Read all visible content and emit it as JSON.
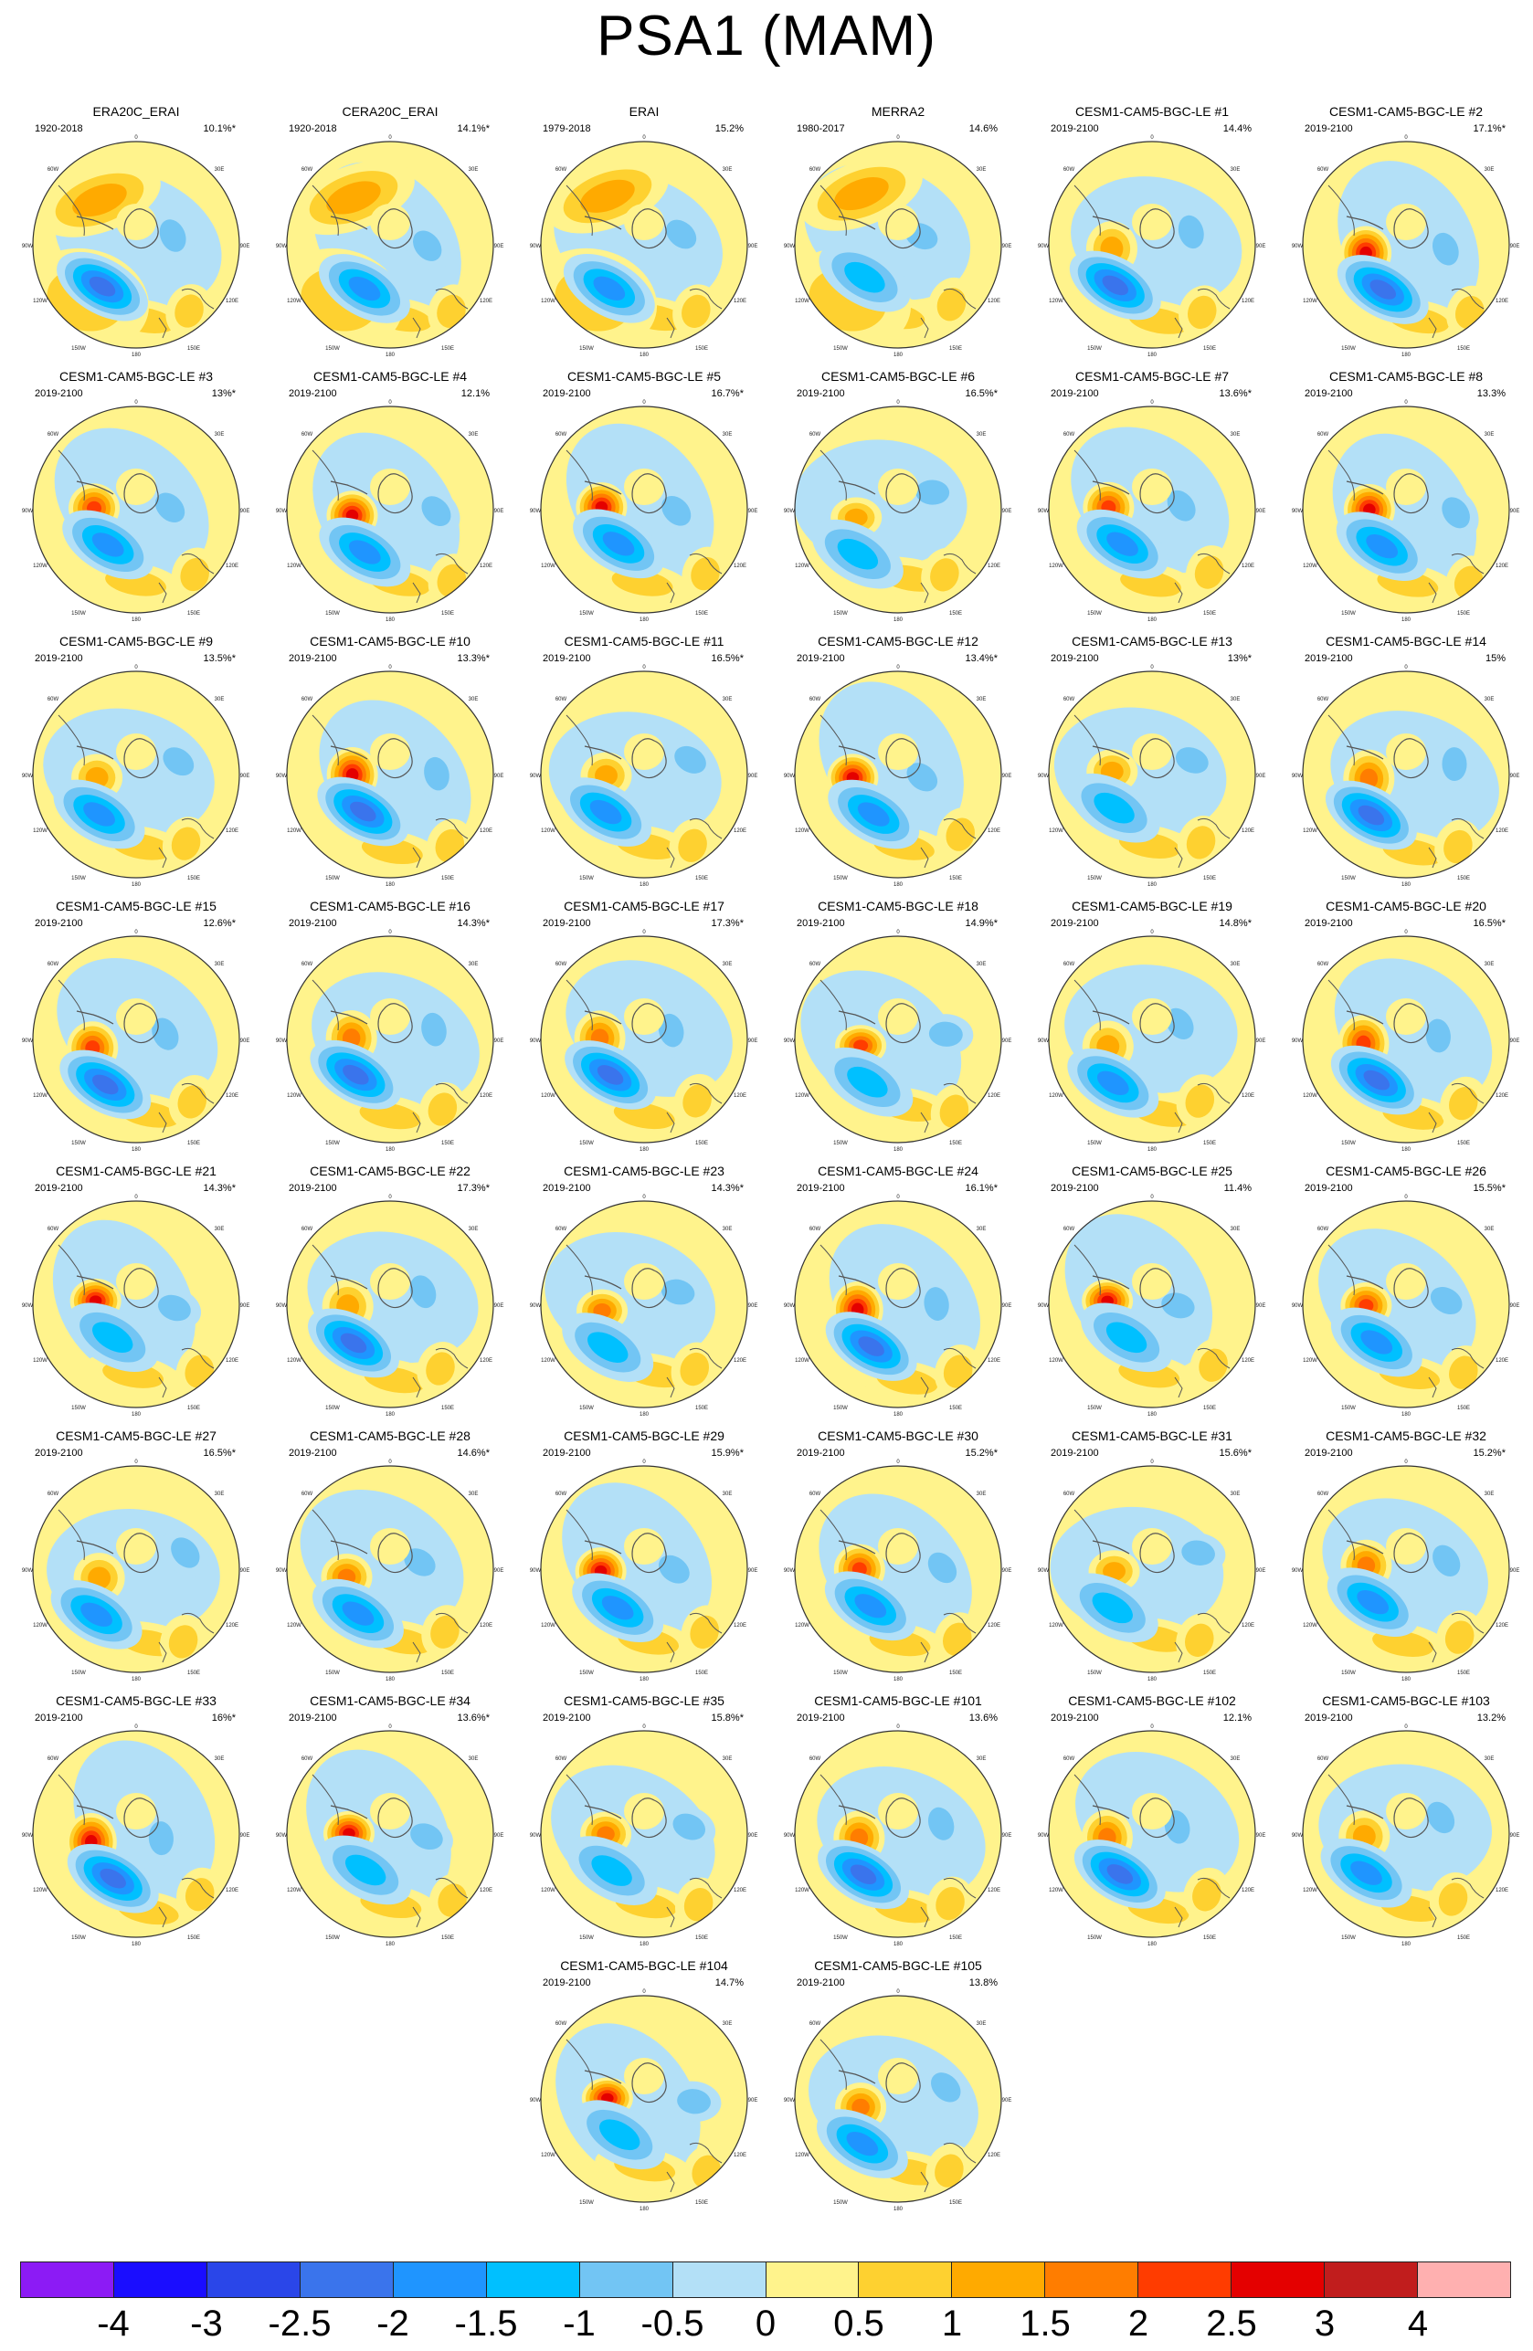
{
  "title": "PSA1 (MAM)",
  "panels": [
    {
      "title": "ERA20C_ERAI",
      "period": "1920-2018",
      "variance": "10.1%*"
    },
    {
      "title": "CERA20C_ERAI",
      "period": "1920-2018",
      "variance": "14.1%*"
    },
    {
      "title": "ERAI",
      "period": "1979-2018",
      "variance": "15.2%"
    },
    {
      "title": "MERRA2",
      "period": "1980-2017",
      "variance": "14.6%"
    },
    {
      "title": "CESM1-CAM5-BGC-LE #1",
      "period": "2019-2100",
      "variance": "14.4%"
    },
    {
      "title": "CESM1-CAM5-BGC-LE #2",
      "period": "2019-2100",
      "variance": "17.1%*"
    },
    {
      "title": "CESM1-CAM5-BGC-LE #3",
      "period": "2019-2100",
      "variance": "13%*"
    },
    {
      "title": "CESM1-CAM5-BGC-LE #4",
      "period": "2019-2100",
      "variance": "12.1%"
    },
    {
      "title": "CESM1-CAM5-BGC-LE #5",
      "period": "2019-2100",
      "variance": "16.7%*"
    },
    {
      "title": "CESM1-CAM5-BGC-LE #6",
      "period": "2019-2100",
      "variance": "16.5%*"
    },
    {
      "title": "CESM1-CAM5-BGC-LE #7",
      "period": "2019-2100",
      "variance": "13.6%*"
    },
    {
      "title": "CESM1-CAM5-BGC-LE #8",
      "period": "2019-2100",
      "variance": "13.3%"
    },
    {
      "title": "CESM1-CAM5-BGC-LE #9",
      "period": "2019-2100",
      "variance": "13.5%*"
    },
    {
      "title": "CESM1-CAM5-BGC-LE #10",
      "period": "2019-2100",
      "variance": "13.3%*"
    },
    {
      "title": "CESM1-CAM5-BGC-LE #11",
      "period": "2019-2100",
      "variance": "16.5%*"
    },
    {
      "title": "CESM1-CAM5-BGC-LE #12",
      "period": "2019-2100",
      "variance": "13.4%*"
    },
    {
      "title": "CESM1-CAM5-BGC-LE #13",
      "period": "2019-2100",
      "variance": "13%*"
    },
    {
      "title": "CESM1-CAM5-BGC-LE #14",
      "period": "2019-2100",
      "variance": "15%"
    },
    {
      "title": "CESM1-CAM5-BGC-LE #15",
      "period": "2019-2100",
      "variance": "12.6%*"
    },
    {
      "title": "CESM1-CAM5-BGC-LE #16",
      "period": "2019-2100",
      "variance": "14.3%*"
    },
    {
      "title": "CESM1-CAM5-BGC-LE #17",
      "period": "2019-2100",
      "variance": "17.3%*"
    },
    {
      "title": "CESM1-CAM5-BGC-LE #18",
      "period": "2019-2100",
      "variance": "14.9%*"
    },
    {
      "title": "CESM1-CAM5-BGC-LE #19",
      "period": "2019-2100",
      "variance": "14.8%*"
    },
    {
      "title": "CESM1-CAM5-BGC-LE #20",
      "period": "2019-2100",
      "variance": "16.5%*"
    },
    {
      "title": "CESM1-CAM5-BGC-LE #21",
      "period": "2019-2100",
      "variance": "14.3%*"
    },
    {
      "title": "CESM1-CAM5-BGC-LE #22",
      "period": "2019-2100",
      "variance": "17.3%*"
    },
    {
      "title": "CESM1-CAM5-BGC-LE #23",
      "period": "2019-2100",
      "variance": "14.3%*"
    },
    {
      "title": "CESM1-CAM5-BGC-LE #24",
      "period": "2019-2100",
      "variance": "16.1%*"
    },
    {
      "title": "CESM1-CAM5-BGC-LE #25",
      "period": "2019-2100",
      "variance": "11.4%"
    },
    {
      "title": "CESM1-CAM5-BGC-LE #26",
      "period": "2019-2100",
      "variance": "15.5%*"
    },
    {
      "title": "CESM1-CAM5-BGC-LE #27",
      "period": "2019-2100",
      "variance": "16.5%*"
    },
    {
      "title": "CESM1-CAM5-BGC-LE #28",
      "period": "2019-2100",
      "variance": "14.6%*"
    },
    {
      "title": "CESM1-CAM5-BGC-LE #29",
      "period": "2019-2100",
      "variance": "15.9%*"
    },
    {
      "title": "CESM1-CAM5-BGC-LE #30",
      "period": "2019-2100",
      "variance": "15.2%*"
    },
    {
      "title": "CESM1-CAM5-BGC-LE #31",
      "period": "2019-2100",
      "variance": "15.6%*"
    },
    {
      "title": "CESM1-CAM5-BGC-LE #32",
      "period": "2019-2100",
      "variance": "15.2%*"
    },
    {
      "title": "CESM1-CAM5-BGC-LE #33",
      "period": "2019-2100",
      "variance": "16%*"
    },
    {
      "title": "CESM1-CAM5-BGC-LE #34",
      "period": "2019-2100",
      "variance": "13.6%*"
    },
    {
      "title": "CESM1-CAM5-BGC-LE #35",
      "period": "2019-2100",
      "variance": "15.8%*"
    },
    {
      "title": "CESM1-CAM5-BGC-LE #101",
      "period": "2019-2100",
      "variance": "13.6%"
    },
    {
      "title": "CESM1-CAM5-BGC-LE #102",
      "period": "2019-2100",
      "variance": "12.1%"
    },
    {
      "title": "CESM1-CAM5-BGC-LE #103",
      "period": "2019-2100",
      "variance": "13.2%"
    },
    {
      "title": "CESM1-CAM5-BGC-LE #104",
      "period": "2019-2100",
      "variance": "14.7%"
    },
    {
      "title": "CESM1-CAM5-BGC-LE #105",
      "period": "2019-2100",
      "variance": "13.8%"
    }
  ],
  "map_labels": {
    "top": "0",
    "upper_left": "60W",
    "upper_right": "30E",
    "left": "90W",
    "right": "90E",
    "lower_left": "120W",
    "lower_right": "120E",
    "bottom_left": "150W",
    "bottom_right": "150E",
    "bottom": "180"
  },
  "colorbar": {
    "labels": [
      "-4",
      "-3",
      "-2.5",
      "-2",
      "-1.5",
      "-1",
      "-0.5",
      "0",
      "0.5",
      "1",
      "1.5",
      "2",
      "2.5",
      "3",
      "4"
    ],
    "colors": [
      "#8c1bf5",
      "#1a0dff",
      "#2a46e9",
      "#3a74ec",
      "#1f95ff",
      "#00c0ff",
      "#72c5f4",
      "#b3e0f7",
      "#fff38c",
      "#fed130",
      "#ffaa00",
      "#ff7d00",
      "#ff3c00",
      "#e40000",
      "#c11d1d",
      "#ffb0b0"
    ]
  }
}
